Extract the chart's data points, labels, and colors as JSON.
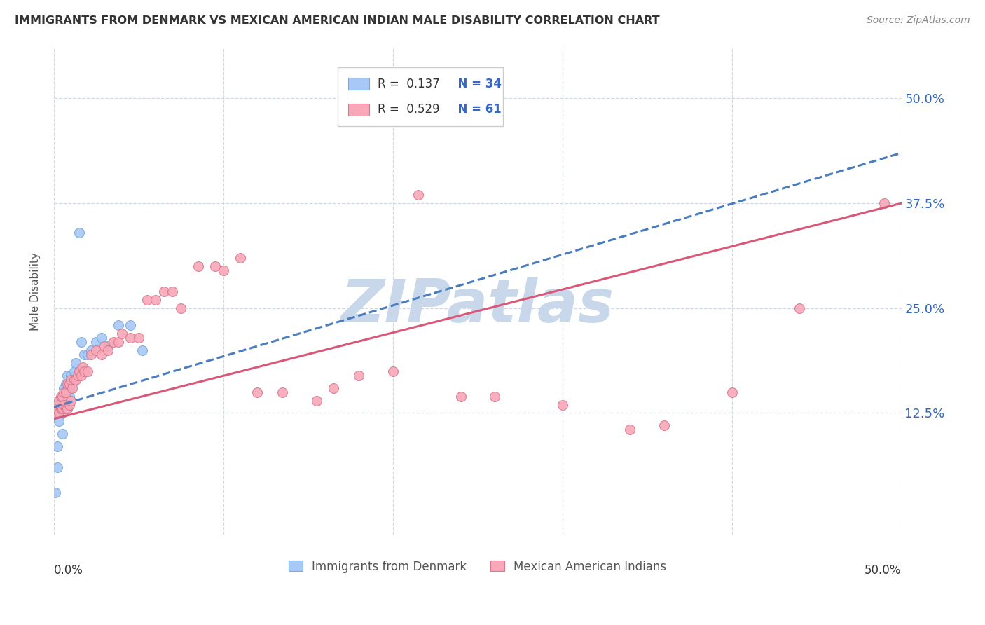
{
  "title": "IMMIGRANTS FROM DENMARK VS MEXICAN AMERICAN INDIAN MALE DISABILITY CORRELATION CHART",
  "source": "Source: ZipAtlas.com",
  "ylabel": "Male Disability",
  "ytick_values": [
    0.125,
    0.25,
    0.375,
    0.5
  ],
  "ytick_labels": [
    "12.5%",
    "25.0%",
    "37.5%",
    "50.0%"
  ],
  "xlim": [
    0.0,
    0.5
  ],
  "ylim": [
    -0.02,
    0.56
  ],
  "watermark": "ZIPatlas",
  "watermark_color": "#c8d8ea",
  "background_color": "#ffffff",
  "grid_color": "#d0d8e8",
  "denmark_color": "#a8c8f8",
  "denmark_edge": "#7aaad8",
  "mexico_color": "#f8a8b8",
  "mexico_edge": "#d87890",
  "denmark_line_color": "#4a7cc0",
  "mexico_line_color": "#d85878",
  "denmark_R": 0.137,
  "denmark_N": 34,
  "mexico_R": 0.529,
  "mexico_N": 61,
  "denmark_line_x0": 0.0,
  "denmark_line_y0": 0.132,
  "denmark_line_x1": 0.5,
  "denmark_line_y1": 0.435,
  "mexico_line_x0": 0.0,
  "mexico_line_y0": 0.118,
  "mexico_line_x1": 0.5,
  "mexico_line_y1": 0.375,
  "denmark_points_x": [
    0.001,
    0.002,
    0.002,
    0.003,
    0.003,
    0.003,
    0.004,
    0.004,
    0.005,
    0.005,
    0.006,
    0.006,
    0.007,
    0.007,
    0.008,
    0.008,
    0.009,
    0.01,
    0.01,
    0.011,
    0.012,
    0.013,
    0.015,
    0.016,
    0.018,
    0.02,
    0.022,
    0.025,
    0.028,
    0.032,
    0.038,
    0.045,
    0.052,
    0.015
  ],
  "denmark_points_y": [
    0.03,
    0.06,
    0.085,
    0.115,
    0.125,
    0.13,
    0.135,
    0.14,
    0.1,
    0.125,
    0.145,
    0.155,
    0.13,
    0.16,
    0.13,
    0.17,
    0.145,
    0.155,
    0.17,
    0.16,
    0.175,
    0.185,
    0.175,
    0.21,
    0.195,
    0.195,
    0.2,
    0.21,
    0.215,
    0.205,
    0.23,
    0.23,
    0.2,
    0.34
  ],
  "mexico_points_x": [
    0.001,
    0.002,
    0.003,
    0.003,
    0.004,
    0.004,
    0.005,
    0.005,
    0.006,
    0.006,
    0.007,
    0.007,
    0.008,
    0.008,
    0.009,
    0.009,
    0.01,
    0.01,
    0.011,
    0.012,
    0.013,
    0.014,
    0.015,
    0.016,
    0.017,
    0.018,
    0.02,
    0.022,
    0.025,
    0.028,
    0.03,
    0.032,
    0.035,
    0.038,
    0.04,
    0.045,
    0.05,
    0.055,
    0.06,
    0.065,
    0.07,
    0.075,
    0.085,
    0.095,
    0.1,
    0.11,
    0.12,
    0.135,
    0.155,
    0.165,
    0.18,
    0.2,
    0.215,
    0.24,
    0.26,
    0.3,
    0.34,
    0.36,
    0.4,
    0.44,
    0.49
  ],
  "mexico_points_y": [
    0.125,
    0.13,
    0.125,
    0.14,
    0.13,
    0.145,
    0.13,
    0.145,
    0.135,
    0.15,
    0.13,
    0.15,
    0.13,
    0.16,
    0.135,
    0.16,
    0.14,
    0.165,
    0.155,
    0.165,
    0.165,
    0.17,
    0.175,
    0.17,
    0.18,
    0.175,
    0.175,
    0.195,
    0.2,
    0.195,
    0.205,
    0.2,
    0.21,
    0.21,
    0.22,
    0.215,
    0.215,
    0.26,
    0.26,
    0.27,
    0.27,
    0.25,
    0.3,
    0.3,
    0.295,
    0.31,
    0.15,
    0.15,
    0.14,
    0.155,
    0.17,
    0.175,
    0.385,
    0.145,
    0.145,
    0.135,
    0.105,
    0.11,
    0.15,
    0.25,
    0.375
  ]
}
